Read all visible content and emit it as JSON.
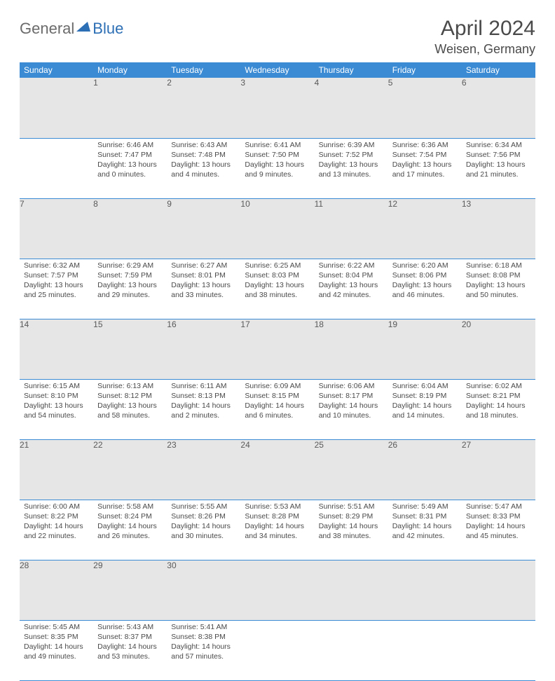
{
  "logo": {
    "part1": "General",
    "part2": "Blue"
  },
  "title": "April 2024",
  "location": "Weisen, Germany",
  "colors": {
    "header_bg": "#3b8bd4",
    "header_fg": "#ffffff",
    "daynum_bg": "#e6e6e6",
    "rule": "#3b8bd4",
    "text": "#4a4a4a",
    "logo_accent": "#2d6fb5"
  },
  "weekdays": [
    "Sunday",
    "Monday",
    "Tuesday",
    "Wednesday",
    "Thursday",
    "Friday",
    "Saturday"
  ],
  "weeks": [
    {
      "nums": [
        "",
        "1",
        "2",
        "3",
        "4",
        "5",
        "6"
      ],
      "cells": [
        null,
        {
          "sr": "Sunrise: 6:46 AM",
          "ss": "Sunset: 7:47 PM",
          "d1": "Daylight: 13 hours",
          "d2": "and 0 minutes."
        },
        {
          "sr": "Sunrise: 6:43 AM",
          "ss": "Sunset: 7:48 PM",
          "d1": "Daylight: 13 hours",
          "d2": "and 4 minutes."
        },
        {
          "sr": "Sunrise: 6:41 AM",
          "ss": "Sunset: 7:50 PM",
          "d1": "Daylight: 13 hours",
          "d2": "and 9 minutes."
        },
        {
          "sr": "Sunrise: 6:39 AM",
          "ss": "Sunset: 7:52 PM",
          "d1": "Daylight: 13 hours",
          "d2": "and 13 minutes."
        },
        {
          "sr": "Sunrise: 6:36 AM",
          "ss": "Sunset: 7:54 PM",
          "d1": "Daylight: 13 hours",
          "d2": "and 17 minutes."
        },
        {
          "sr": "Sunrise: 6:34 AM",
          "ss": "Sunset: 7:56 PM",
          "d1": "Daylight: 13 hours",
          "d2": "and 21 minutes."
        }
      ]
    },
    {
      "nums": [
        "7",
        "8",
        "9",
        "10",
        "11",
        "12",
        "13"
      ],
      "cells": [
        {
          "sr": "Sunrise: 6:32 AM",
          "ss": "Sunset: 7:57 PM",
          "d1": "Daylight: 13 hours",
          "d2": "and 25 minutes."
        },
        {
          "sr": "Sunrise: 6:29 AM",
          "ss": "Sunset: 7:59 PM",
          "d1": "Daylight: 13 hours",
          "d2": "and 29 minutes."
        },
        {
          "sr": "Sunrise: 6:27 AM",
          "ss": "Sunset: 8:01 PM",
          "d1": "Daylight: 13 hours",
          "d2": "and 33 minutes."
        },
        {
          "sr": "Sunrise: 6:25 AM",
          "ss": "Sunset: 8:03 PM",
          "d1": "Daylight: 13 hours",
          "d2": "and 38 minutes."
        },
        {
          "sr": "Sunrise: 6:22 AM",
          "ss": "Sunset: 8:04 PM",
          "d1": "Daylight: 13 hours",
          "d2": "and 42 minutes."
        },
        {
          "sr": "Sunrise: 6:20 AM",
          "ss": "Sunset: 8:06 PM",
          "d1": "Daylight: 13 hours",
          "d2": "and 46 minutes."
        },
        {
          "sr": "Sunrise: 6:18 AM",
          "ss": "Sunset: 8:08 PM",
          "d1": "Daylight: 13 hours",
          "d2": "and 50 minutes."
        }
      ]
    },
    {
      "nums": [
        "14",
        "15",
        "16",
        "17",
        "18",
        "19",
        "20"
      ],
      "cells": [
        {
          "sr": "Sunrise: 6:15 AM",
          "ss": "Sunset: 8:10 PM",
          "d1": "Daylight: 13 hours",
          "d2": "and 54 minutes."
        },
        {
          "sr": "Sunrise: 6:13 AM",
          "ss": "Sunset: 8:12 PM",
          "d1": "Daylight: 13 hours",
          "d2": "and 58 minutes."
        },
        {
          "sr": "Sunrise: 6:11 AM",
          "ss": "Sunset: 8:13 PM",
          "d1": "Daylight: 14 hours",
          "d2": "and 2 minutes."
        },
        {
          "sr": "Sunrise: 6:09 AM",
          "ss": "Sunset: 8:15 PM",
          "d1": "Daylight: 14 hours",
          "d2": "and 6 minutes."
        },
        {
          "sr": "Sunrise: 6:06 AM",
          "ss": "Sunset: 8:17 PM",
          "d1": "Daylight: 14 hours",
          "d2": "and 10 minutes."
        },
        {
          "sr": "Sunrise: 6:04 AM",
          "ss": "Sunset: 8:19 PM",
          "d1": "Daylight: 14 hours",
          "d2": "and 14 minutes."
        },
        {
          "sr": "Sunrise: 6:02 AM",
          "ss": "Sunset: 8:21 PM",
          "d1": "Daylight: 14 hours",
          "d2": "and 18 minutes."
        }
      ]
    },
    {
      "nums": [
        "21",
        "22",
        "23",
        "24",
        "25",
        "26",
        "27"
      ],
      "cells": [
        {
          "sr": "Sunrise: 6:00 AM",
          "ss": "Sunset: 8:22 PM",
          "d1": "Daylight: 14 hours",
          "d2": "and 22 minutes."
        },
        {
          "sr": "Sunrise: 5:58 AM",
          "ss": "Sunset: 8:24 PM",
          "d1": "Daylight: 14 hours",
          "d2": "and 26 minutes."
        },
        {
          "sr": "Sunrise: 5:55 AM",
          "ss": "Sunset: 8:26 PM",
          "d1": "Daylight: 14 hours",
          "d2": "and 30 minutes."
        },
        {
          "sr": "Sunrise: 5:53 AM",
          "ss": "Sunset: 8:28 PM",
          "d1": "Daylight: 14 hours",
          "d2": "and 34 minutes."
        },
        {
          "sr": "Sunrise: 5:51 AM",
          "ss": "Sunset: 8:29 PM",
          "d1": "Daylight: 14 hours",
          "d2": "and 38 minutes."
        },
        {
          "sr": "Sunrise: 5:49 AM",
          "ss": "Sunset: 8:31 PM",
          "d1": "Daylight: 14 hours",
          "d2": "and 42 minutes."
        },
        {
          "sr": "Sunrise: 5:47 AM",
          "ss": "Sunset: 8:33 PM",
          "d1": "Daylight: 14 hours",
          "d2": "and 45 minutes."
        }
      ]
    },
    {
      "nums": [
        "28",
        "29",
        "30",
        "",
        "",
        "",
        ""
      ],
      "cells": [
        {
          "sr": "Sunrise: 5:45 AM",
          "ss": "Sunset: 8:35 PM",
          "d1": "Daylight: 14 hours",
          "d2": "and 49 minutes."
        },
        {
          "sr": "Sunrise: 5:43 AM",
          "ss": "Sunset: 8:37 PM",
          "d1": "Daylight: 14 hours",
          "d2": "and 53 minutes."
        },
        {
          "sr": "Sunrise: 5:41 AM",
          "ss": "Sunset: 8:38 PM",
          "d1": "Daylight: 14 hours",
          "d2": "and 57 minutes."
        },
        null,
        null,
        null,
        null
      ]
    }
  ]
}
